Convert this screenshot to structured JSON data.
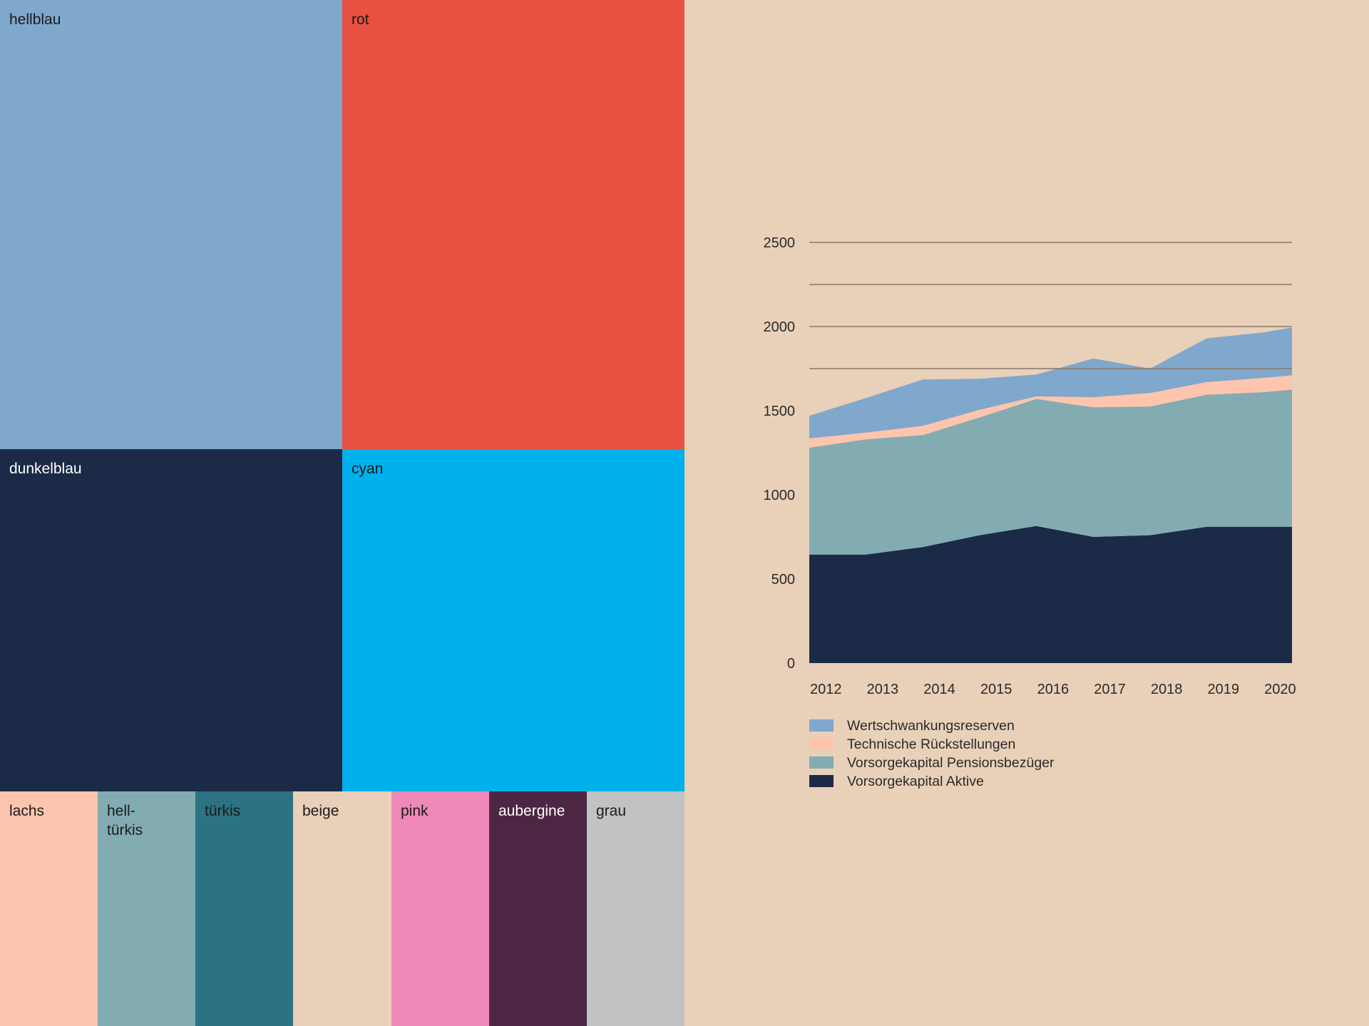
{
  "palette": [
    {
      "name": "hellblau",
      "color": "#80a7cc",
      "text_color": "#1b1b1b"
    },
    {
      "name": "rot",
      "color": "#e85142",
      "text_color": "#1b1b1b"
    },
    {
      "name": "dunkelblau",
      "color": "#1b2a47",
      "text_color": "#ffffff"
    },
    {
      "name": "cyan",
      "color": "#00b1eb",
      "text_color": "#1b1b1b"
    },
    {
      "name": "lachs",
      "color": "#fdc5ad",
      "text_color": "#1b1b1b"
    },
    {
      "name": "hell-\ntürkis",
      "color": "#82acb2",
      "text_color": "#1b1b1b"
    },
    {
      "name": "türkis",
      "color": "#2b7283",
      "text_color": "#1b1b1b"
    },
    {
      "name": "beige",
      "color": "#e9d0b9",
      "text_color": "#1b1b1b"
    },
    {
      "name": "pink",
      "color": "#ef89b7",
      "text_color": "#1b1b1b"
    },
    {
      "name": "aubergine",
      "color": "#4d2644",
      "text_color": "#ffffff"
    },
    {
      "name": "grau",
      "color": "#c1c2c4",
      "text_color": "#1b1b1b"
    }
  ],
  "chart_data": {
    "type": "area",
    "stacked": true,
    "x": [
      2012,
      2013,
      2014,
      2015,
      2016,
      2017,
      2018,
      2019,
      2020,
      2020.5
    ],
    "x_tick_labels": [
      "2012",
      "2013",
      "2014",
      "2015",
      "2016",
      "2017",
      "2018",
      "2019",
      "2020"
    ],
    "y_ticks": [
      0,
      500,
      1000,
      1500,
      2000,
      2500
    ],
    "ylim": [
      0,
      2500
    ],
    "gridlines": [
      2500,
      2250,
      2000,
      1750
    ],
    "series": [
      {
        "name": "Vorsorgekapital Aktive",
        "color": "#1b2a47",
        "values": [
          645,
          645,
          690,
          760,
          815,
          750,
          760,
          810,
          810,
          810
        ]
      },
      {
        "name": "Vorsorgekapital Pensionsbezüger",
        "color": "#82acb2",
        "values": [
          635,
          685,
          665,
          700,
          755,
          770,
          765,
          785,
          800,
          815
        ]
      },
      {
        "name": "Technische Rückstellungen",
        "color": "#fdc5ad",
        "values": [
          55,
          40,
          55,
          45,
          15,
          60,
          80,
          75,
          85,
          85
        ]
      },
      {
        "name": "Wertschwankungsreserven",
        "color": "#80a7cc",
        "values": [
          135,
          205,
          275,
          185,
          130,
          230,
          145,
          260,
          270,
          285
        ]
      }
    ],
    "legend": [
      "Wertschwankungsreserven",
      "Technische Rückstellungen",
      "Vorsorgekapital Pensionsbezüger",
      "Vorsorgekapital Aktive"
    ],
    "gridline_color": "#8a7868"
  }
}
